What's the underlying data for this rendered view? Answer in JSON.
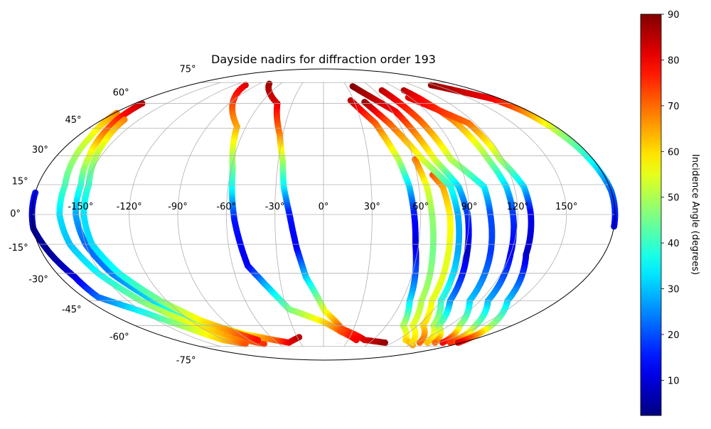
{
  "chart_data": {
    "type": "scatter",
    "projection": "mollweide",
    "title": "Dayside nadirs for diffraction order 193",
    "xlabel": "",
    "ylabel": "",
    "grid": true,
    "lon_ticks": [
      -150,
      -120,
      -90,
      -60,
      -30,
      0,
      30,
      60,
      90,
      120,
      150
    ],
    "lon_tick_labels": [
      "-150°",
      "-120°",
      "-90°",
      "-60°",
      "-30°",
      "0°",
      "30°",
      "60°",
      "90°",
      "120°",
      "150°"
    ],
    "lat_ticks": [
      75,
      60,
      45,
      30,
      15,
      0,
      -15,
      -30,
      -45,
      -60,
      -75
    ],
    "lat_tick_labels": [
      "75°",
      "60°",
      "45°",
      "30°",
      "15°",
      "0°",
      "-15°",
      "-30°",
      "-45°",
      "-60°",
      "-75°"
    ],
    "colorbar": {
      "label": "Incidence Angle (degrees)",
      "colormap": "jet",
      "range": [
        2.3,
        90
      ],
      "ticks": [
        10,
        20,
        30,
        40,
        50,
        60,
        70,
        80,
        90
      ],
      "tick_labels": [
        "10",
        "20",
        "30",
        "40",
        "50",
        "60",
        "70",
        "80",
        "90"
      ],
      "placement": "right"
    },
    "point_format": [
      "longitude_deg",
      "latitude_deg",
      "incidence_deg"
    ],
    "tracks": [
      {
        "name": "track-a",
        "points": [
          [
            -178,
            54,
            68
          ],
          [
            -170,
            40,
            55
          ],
          [
            -163,
            15,
            42
          ],
          [
            -163,
            0,
            33
          ],
          [
            -160,
            -15,
            30
          ],
          [
            -152,
            -30,
            35
          ],
          [
            -140,
            -45,
            45
          ],
          [
            -125,
            -58,
            55
          ],
          [
            -110,
            -65,
            63
          ],
          [
            -95,
            -70,
            70
          ],
          [
            -80,
            -73,
            75
          ]
        ]
      },
      {
        "name": "track-b",
        "points": [
          [
            -173,
            60,
            85
          ],
          [
            -165,
            45,
            72
          ],
          [
            -158,
            30,
            55
          ],
          [
            -153,
            15,
            40
          ],
          [
            -153,
            0,
            28
          ],
          [
            -150,
            -15,
            22
          ],
          [
            -143,
            -30,
            24
          ],
          [
            -130,
            -45,
            32
          ],
          [
            -110,
            -58,
            45
          ],
          [
            -85,
            -66,
            58
          ],
          [
            -60,
            -70,
            70
          ],
          [
            -45,
            -72,
            80
          ],
          [
            -28,
            -68,
            85
          ]
        ]
      },
      {
        "name": "track-c",
        "points": [
          [
            -162,
            50,
            68
          ],
          [
            -155,
            35,
            55
          ],
          [
            -148,
            15,
            40
          ],
          [
            -148,
            0,
            33
          ],
          [
            -146,
            -15,
            32
          ],
          [
            -138,
            -30,
            36
          ],
          [
            -125,
            -45,
            45
          ],
          [
            -110,
            -57,
            58
          ],
          [
            -95,
            -64,
            68
          ],
          [
            -80,
            -70,
            78
          ]
        ]
      },
      {
        "name": "track-d-west",
        "points": [
          [
            -180,
            11,
            15
          ],
          [
            -180,
            -7,
            5
          ],
          [
            -175,
            -20,
            4
          ],
          [
            -170,
            -32,
            10
          ],
          [
            -169,
            -43,
            22
          ],
          [
            -151,
            -51,
            35
          ],
          [
            -134,
            -61,
            50
          ],
          [
            -122,
            -70,
            62
          ],
          [
            -105,
            -73,
            72
          ]
        ]
      },
      {
        "name": "track-d-east",
        "points": [
          [
            145,
            73,
            88
          ],
          [
            172,
            63,
            80
          ],
          [
            175,
            55,
            68
          ],
          [
            176,
            41,
            48
          ],
          [
            178,
            26,
            35
          ],
          [
            180,
            12,
            22
          ],
          [
            180,
            -6,
            12
          ]
        ]
      },
      {
        "name": "track-g",
        "points": [
          [
            -76,
            74,
            88
          ],
          [
            -44,
            60,
            82
          ],
          [
            -32,
            41,
            68
          ],
          [
            -27,
            27,
            50
          ],
          [
            -25,
            14,
            35
          ],
          [
            -21,
            0,
            15
          ],
          [
            -17,
            -17,
            12
          ],
          [
            -12,
            -32,
            30
          ],
          [
            1,
            -51,
            55
          ],
          [
            18,
            -62,
            72
          ],
          [
            50,
            -70,
            82
          ],
          [
            80,
            -72,
            88
          ]
        ]
      },
      {
        "name": "track-h",
        "points": [
          [
            -105,
            73,
            82
          ],
          [
            -67,
            46,
            65
          ],
          [
            -59,
            23,
            45
          ],
          [
            -57,
            10,
            33
          ],
          [
            -55,
            -3,
            15
          ],
          [
            -50,
            -26,
            12
          ],
          [
            -41,
            -36,
            28
          ],
          [
            -28,
            -50,
            45
          ],
          [
            1,
            -58,
            60
          ],
          [
            18,
            -64,
            72
          ],
          [
            40,
            -70,
            80
          ]
        ]
      },
      {
        "name": "track-f",
        "points": [
          [
            27,
            62,
            85
          ],
          [
            41,
            48,
            72
          ],
          [
            50,
            28,
            52
          ],
          [
            54,
            14,
            32
          ],
          [
            56,
            0,
            15
          ],
          [
            58,
            -15,
            10
          ],
          [
            62,
            -30,
            20
          ],
          [
            66,
            -45,
            32
          ],
          [
            76,
            -60,
            50
          ],
          [
            100,
            -70,
            60
          ],
          [
            125,
            -74,
            65
          ]
        ]
      },
      {
        "name": "track-i1",
        "points": [
          [
            61,
            28,
            70
          ],
          [
            65,
            14,
            55
          ],
          [
            67,
            0,
            48
          ],
          [
            70,
            -20,
            45
          ],
          [
            75,
            -45,
            50
          ],
          [
            85,
            -60,
            55
          ],
          [
            115,
            -72,
            60
          ]
        ]
      },
      {
        "name": "track-i2",
        "points": [
          [
            70,
            20,
            72
          ],
          [
            75,
            14,
            65
          ],
          [
            78,
            0,
            58
          ],
          [
            80,
            -20,
            55
          ],
          [
            83,
            -45,
            55
          ],
          [
            95,
            -60,
            60
          ],
          [
            125,
            -72,
            70
          ]
        ]
      },
      {
        "name": "track-j",
        "points": [
          [
            40,
            61,
            88
          ],
          [
            52,
            48,
            72
          ],
          [
            66,
            28,
            55
          ],
          [
            80,
            14,
            38
          ],
          [
            83,
            0,
            28
          ],
          [
            86,
            -20,
            28
          ],
          [
            90,
            -45,
            38
          ],
          [
            105,
            -60,
            50
          ],
          [
            135,
            -72,
            62
          ]
        ]
      },
      {
        "name": "track-k",
        "points": [
          [
            38,
            72,
            90
          ],
          [
            63,
            55,
            80
          ],
          [
            74,
            28,
            55
          ],
          [
            85,
            14,
            32
          ],
          [
            89,
            0,
            18
          ],
          [
            92,
            -20,
            8
          ],
          [
            97,
            -45,
            25
          ],
          [
            110,
            -60,
            45
          ],
          [
            145,
            -72,
            70
          ]
        ]
      },
      {
        "name": "track-l",
        "points": [
          [
            69,
            69,
            85
          ],
          [
            78,
            50,
            72
          ],
          [
            85,
            28,
            52
          ],
          [
            101,
            14,
            35
          ],
          [
            103,
            0,
            20
          ],
          [
            107,
            -20,
            18
          ],
          [
            112,
            -45,
            30
          ],
          [
            130,
            -60,
            48
          ],
          [
            155,
            -72,
            80
          ]
        ]
      },
      {
        "name": "track-m",
        "points": [
          [
            95,
            69,
            85
          ],
          [
            105,
            50,
            68
          ],
          [
            110,
            28,
            48
          ],
          [
            115,
            14,
            32
          ],
          [
            117,
            0,
            18
          ],
          [
            120,
            -20,
            12
          ],
          [
            126,
            -45,
            28
          ],
          [
            145,
            -60,
            45
          ],
          [
            165,
            -72,
            75
          ]
        ]
      },
      {
        "name": "track-n",
        "points": [
          [
            88,
            64,
            82
          ],
          [
            115,
            48,
            70
          ],
          [
            118,
            28,
            50
          ],
          [
            126,
            14,
            32
          ],
          [
            128,
            0,
            12
          ],
          [
            130,
            -20,
            8
          ],
          [
            141,
            -45,
            30
          ],
          [
            160,
            -60,
            48
          ],
          [
            175,
            -72,
            82
          ]
        ]
      }
    ]
  }
}
